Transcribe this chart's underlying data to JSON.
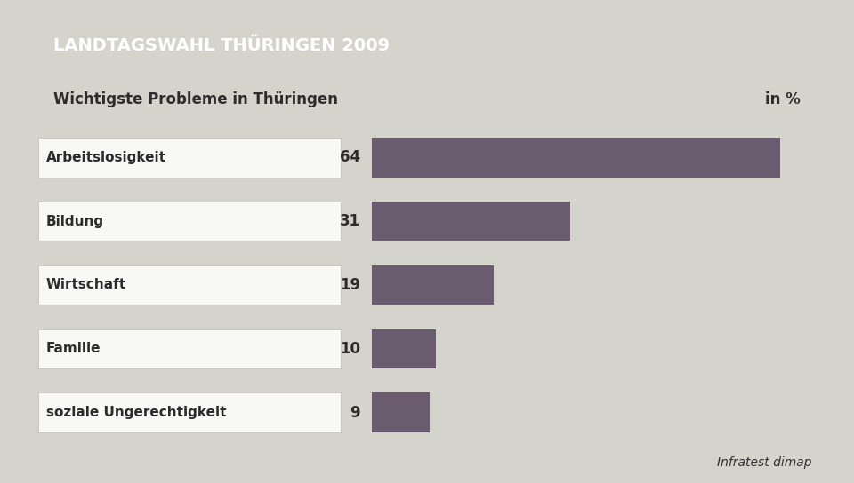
{
  "title": "LANDTAGSWAHL THÜRINGEN 2009",
  "subtitle": "Wichtigste Probleme in Thüringen",
  "subtitle_right": "in %",
  "categories": [
    "Arbeitslosigkeit",
    "Bildung",
    "Wirtschaft",
    "Familie",
    "soziale Ungerechtigkeit"
  ],
  "values": [
    64,
    31,
    19,
    10,
    9
  ],
  "bar_color": "#6b5b6e",
  "title_bg_color": "#1a3a6b",
  "title_text_color": "#ffffff",
  "subtitle_bg_color": "#f5f5f0",
  "subtitle_text_color": "#2c2c2c",
  "chart_bg_color": "#e8e8e3",
  "outer_bg_color": "#d4d3cc",
  "label_bg_color": "#f8f8f5",
  "label_color": "#2c2c2c",
  "value_color": "#2c2c2c",
  "source_text": "Infratest dimap",
  "source_color": "#333333",
  "title_fontsize": 14,
  "subtitle_fontsize": 12,
  "label_fontsize": 11,
  "value_fontsize": 12,
  "source_fontsize": 10
}
